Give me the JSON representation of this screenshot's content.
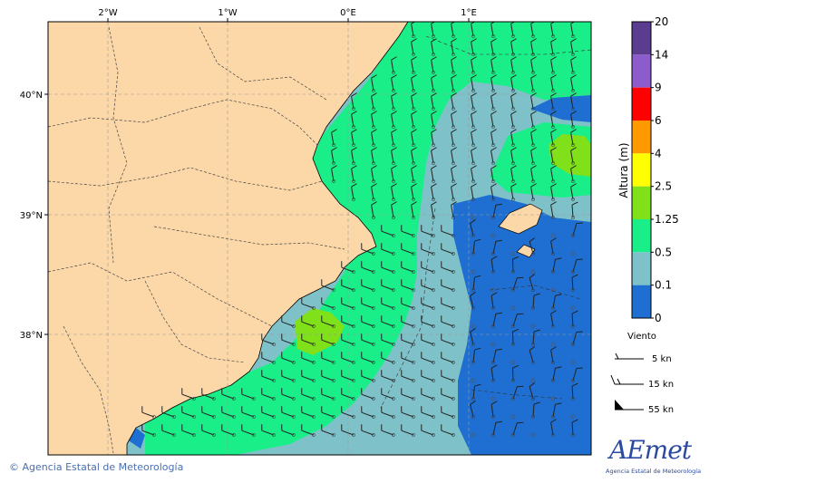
{
  "map": {
    "lon_labels": [
      "2°W",
      "1°W",
      "0°E",
      "1°E"
    ],
    "lat_labels": [
      "40°N",
      "39°N",
      "38°N"
    ],
    "extent": {
      "lon": [
        -2.5,
        2.0
      ],
      "lat": [
        37.0,
        40.6
      ]
    }
  },
  "colorbar": {
    "title": "Altura (m)",
    "levels": [
      "20",
      "14",
      "9",
      "6",
      "4",
      "2.5",
      "1.25",
      "0.5",
      "0.1",
      "0"
    ],
    "colors": [
      "#5b3d8f",
      "#8c5ccc",
      "#ff0000",
      "#ff9900",
      "#ffff00",
      "#80e01a",
      "#1aee88",
      "#7fc1c8",
      "#1e6fd1"
    ]
  },
  "wind_legend": {
    "title": "Viento",
    "items": [
      "5 kn",
      "15 kn",
      "55 kn"
    ]
  },
  "colors": {
    "land": "#fcd8a8",
    "sea_low": "#1e6fd1",
    "sea_mid": "#7fc1c8",
    "sea_high": "#1aee88",
    "sea_peak": "#80e01a"
  },
  "footer": {
    "copyright": "© Agencia Estatal de Meteorología",
    "logo_text": "AEmet",
    "logo_subtitle": "Agencia Estatal de Meteorología"
  }
}
